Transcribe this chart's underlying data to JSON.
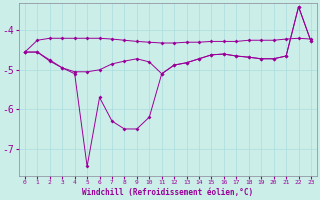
{
  "xlabel": "Windchill (Refroidissement éolien,°C)",
  "x": [
    0,
    1,
    2,
    3,
    4,
    5,
    6,
    7,
    8,
    9,
    10,
    11,
    12,
    13,
    14,
    15,
    16,
    17,
    18,
    19,
    20,
    21,
    22,
    23
  ],
  "line1": [
    -4.55,
    -4.25,
    -4.2,
    -4.2,
    -4.2,
    -4.2,
    -4.2,
    -4.22,
    -4.25,
    -4.28,
    -4.3,
    -4.32,
    -4.32,
    -4.3,
    -4.3,
    -4.28,
    -4.28,
    -4.28,
    -4.25,
    -4.25,
    -4.25,
    -4.22,
    -4.2,
    -4.22
  ],
  "line2": [
    -4.55,
    -4.55,
    -4.75,
    -4.95,
    -5.1,
    -7.45,
    -5.7,
    -6.3,
    -6.5,
    -6.5,
    -6.2,
    -5.1,
    -4.88,
    -4.82,
    -4.72,
    -4.62,
    -4.6,
    -4.65,
    -4.68,
    -4.72,
    -4.72,
    -4.65,
    -3.4,
    -4.28
  ],
  "line3": [
    -4.55,
    -4.55,
    -4.78,
    -4.95,
    -5.05,
    -5.05,
    -5.0,
    -4.85,
    -4.78,
    -4.72,
    -4.8,
    -5.1,
    -4.88,
    -4.82,
    -4.72,
    -4.62,
    -4.6,
    -4.65,
    -4.68,
    -4.72,
    -4.72,
    -4.65,
    -3.4,
    -4.28
  ],
  "color": "#990099",
  "bg_color": "#cceee8",
  "grid_color": "#aadddd",
  "ylim": [
    -7.7,
    -3.3
  ],
  "yticks": [
    -7,
    -6,
    -5,
    -4
  ],
  "xticks": [
    0,
    1,
    2,
    3,
    4,
    5,
    6,
    7,
    8,
    9,
    10,
    11,
    12,
    13,
    14,
    15,
    16,
    17,
    18,
    19,
    20,
    21,
    22,
    23
  ]
}
